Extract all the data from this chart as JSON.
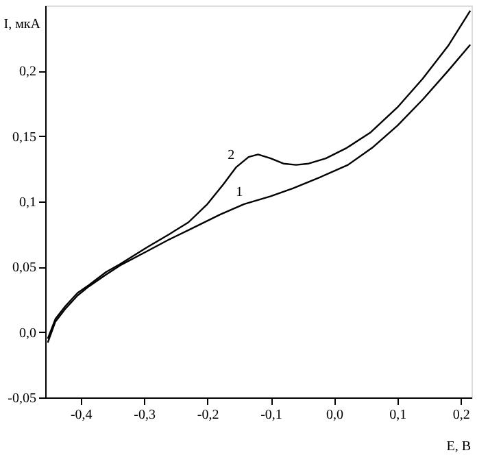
{
  "chart_data": {
    "type": "line",
    "xlabel": "E, B",
    "ylabel": "I, мкА",
    "xlim": [
      -0.456,
      0.217
    ],
    "ylim": [
      -0.05,
      0.25
    ],
    "xticks": [
      {
        "value": -0.4,
        "label": "-0,4"
      },
      {
        "value": -0.3,
        "label": "-0,3"
      },
      {
        "value": -0.2,
        "label": "-0,2"
      },
      {
        "value": -0.1,
        "label": "-0,1"
      },
      {
        "value": 0,
        "label": "0,0"
      },
      {
        "value": 0.1,
        "label": "0,1"
      },
      {
        "value": 0.2,
        "label": "0,2"
      }
    ],
    "yticks": [
      {
        "value": -0.05,
        "label": "-0,05"
      },
      {
        "value": 0,
        "label": "0,0"
      },
      {
        "value": 0.05,
        "label": "0,05"
      },
      {
        "value": 0.1,
        "label": "0,1"
      },
      {
        "value": 0.15,
        "label": "0,15"
      },
      {
        "value": 0.2,
        "label": "0,2"
      }
    ],
    "grid": false,
    "marker": "none",
    "line_style": "solid",
    "series": [
      {
        "color": "#000000",
        "x": [
          -0.452,
          -0.44,
          -0.424,
          -0.405,
          -0.387,
          -0.36,
          -0.338,
          -0.295,
          -0.26,
          -0.23,
          -0.18,
          -0.142,
          -0.1,
          -0.065,
          -0.02,
          0.022,
          0.06,
          0.1,
          0.14,
          0.18,
          0.215
        ],
        "values": [
          -0.008,
          0.008,
          0.018,
          0.028,
          0.035,
          0.044,
          0.051,
          0.062,
          0.071,
          0.078,
          0.09,
          0.098,
          0.104,
          0.11,
          0.119,
          0.128,
          0.141,
          0.158,
          0.178,
          0.2,
          0.22
        ]
      },
      {
        "color": "#000000",
        "x": [
          -0.452,
          -0.44,
          -0.424,
          -0.405,
          -0.387,
          -0.36,
          -0.338,
          -0.295,
          -0.26,
          -0.23,
          -0.2,
          -0.175,
          -0.155,
          -0.135,
          -0.12,
          -0.1,
          -0.08,
          -0.06,
          -0.04,
          -0.013,
          0.02,
          0.058,
          0.1,
          0.14,
          0.18,
          0.215
        ],
        "values": [
          -0.005,
          0.01,
          0.02,
          0.03,
          0.036,
          0.046,
          0.052,
          0.065,
          0.075,
          0.084,
          0.098,
          0.113,
          0.126,
          0.134,
          0.136,
          0.133,
          0.129,
          0.128,
          0.129,
          0.133,
          0.141,
          0.153,
          0.172,
          0.194,
          0.219,
          0.246
        ]
      }
    ],
    "annotations": [
      {
        "text": "1",
        "x": -0.142,
        "y": 0.098
      },
      {
        "text": "2",
        "x": -0.155,
        "y": 0.126
      }
    ]
  }
}
